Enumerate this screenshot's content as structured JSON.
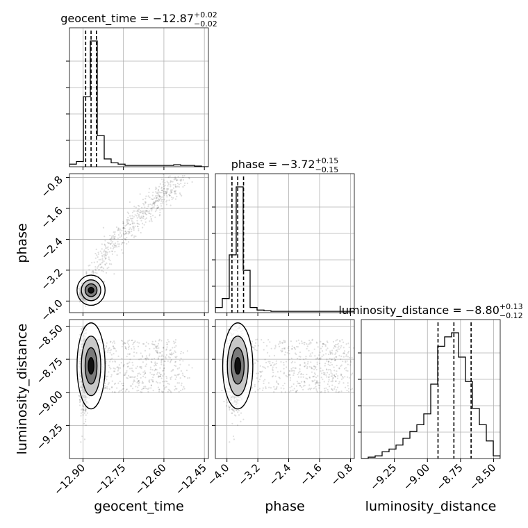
{
  "chart_data": {
    "type": "corner",
    "grid": true,
    "params": [
      {
        "key": "geocent_time",
        "label": "geocent_time",
        "range": [
          -12.95,
          -12.435
        ],
        "ticks": [
          -12.9,
          -12.75,
          -12.6,
          -12.45
        ],
        "tick_labels": [
          "−12.90",
          "−12.75",
          "−12.60",
          "−12.45"
        ],
        "quantiles": [
          -12.89,
          -12.87,
          -12.85
        ],
        "title_main": "geocent_time = −12.87",
        "title_sup": "+0.02",
        "title_sub": "−0.02",
        "hist": [
          0.02,
          0.04,
          0.54,
          0.97,
          0.24,
          0.06,
          0.03,
          0.02,
          0.01,
          0.01,
          0.01,
          0.01,
          0.01,
          0.01,
          0.01,
          0.015,
          0.01,
          0.01,
          0.005,
          0.0
        ]
      },
      {
        "key": "phase",
        "label": "phase",
        "range": [
          -4.3,
          -0.7
        ],
        "ticks": [
          -4.0,
          -3.2,
          -2.4,
          -1.6,
          -0.8
        ],
        "tick_labels": [
          "−4.0",
          "−3.2",
          "−2.4",
          "−1.6",
          "−0.8"
        ],
        "quantiles": [
          -3.87,
          -3.72,
          -3.57
        ],
        "title_main": "phase = −3.72",
        "title_sup": "+0.15",
        "title_sub": "−0.15",
        "hist": [
          0.04,
          0.11,
          0.45,
          0.98,
          0.33,
          0.04,
          0.02,
          0.015,
          0.01,
          0.01,
          0.01,
          0.01,
          0.01,
          0.01,
          0.01,
          0.01,
          0.01,
          0.01,
          0.01,
          0.01
        ]
      },
      {
        "key": "luminosity_distance",
        "label": "luminosity_distance",
        "range": [
          -9.5,
          -8.45
        ],
        "ticks": [
          -9.25,
          -9.0,
          -8.75,
          -8.5
        ],
        "tick_labels": [
          "−9.25",
          "−9.00",
          "−8.75",
          "−8.50"
        ],
        "quantiles": [
          -8.92,
          -8.8,
          -8.67
        ],
        "title_main": "luminosity_distance = −8.80",
        "title_sup": "+0.13",
        "title_sub": "−0.12",
        "hist": [
          0.0,
          0.01,
          0.02,
          0.05,
          0.07,
          0.1,
          0.15,
          0.2,
          0.25,
          0.33,
          0.55,
          0.83,
          0.9,
          0.93,
          0.75,
          0.57,
          0.37,
          0.25,
          0.13,
          0.02
        ]
      }
    ]
  }
}
